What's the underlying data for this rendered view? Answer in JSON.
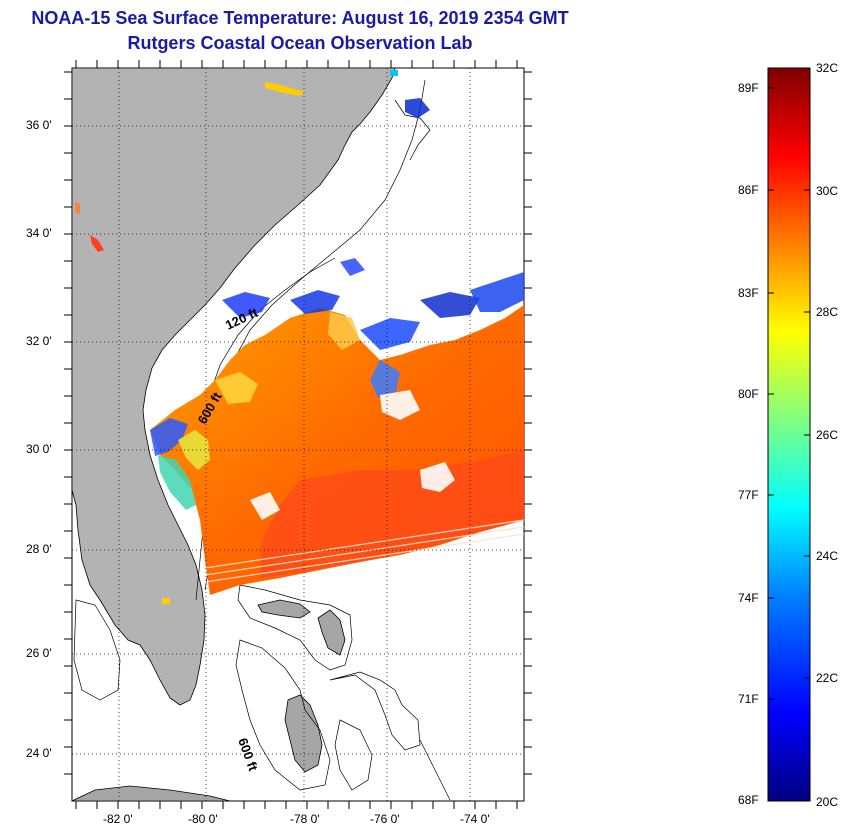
{
  "title": {
    "line1": "NOAA-15 Sea Surface Temperature:  August 16, 2019 2354 GMT",
    "line2": "Rutgers Coastal Ocean Observation Lab"
  },
  "map": {
    "lat_ticks": [
      "36 0'",
      "34 0'",
      "32 0'",
      "30 0'",
      "28 0'",
      "26 0'",
      "24 0'"
    ],
    "lon_ticks": [
      "-82 0'",
      "-80 0'",
      "-78 0'",
      "-76 0'",
      "-74 0'"
    ],
    "contour_labels": [
      "120 ft",
      "600 ft",
      "600 ft"
    ],
    "colors": {
      "land": "#b3b3b3",
      "no_data": "#ffffff"
    }
  },
  "colorbar": {
    "fahrenheit": [
      "89F",
      "86F",
      "83F",
      "80F",
      "77F",
      "74F",
      "71F",
      "68F"
    ],
    "celsius": [
      "32C",
      "30C",
      "28C",
      "26C",
      "24C",
      "22C",
      "20C"
    ],
    "range_c": [
      20,
      32
    ],
    "colors": [
      "#00007f",
      "#0000ff",
      "#0080ff",
      "#00ffff",
      "#80ff80",
      "#ffff00",
      "#ff8000",
      "#ff0000",
      "#7f0000"
    ]
  }
}
